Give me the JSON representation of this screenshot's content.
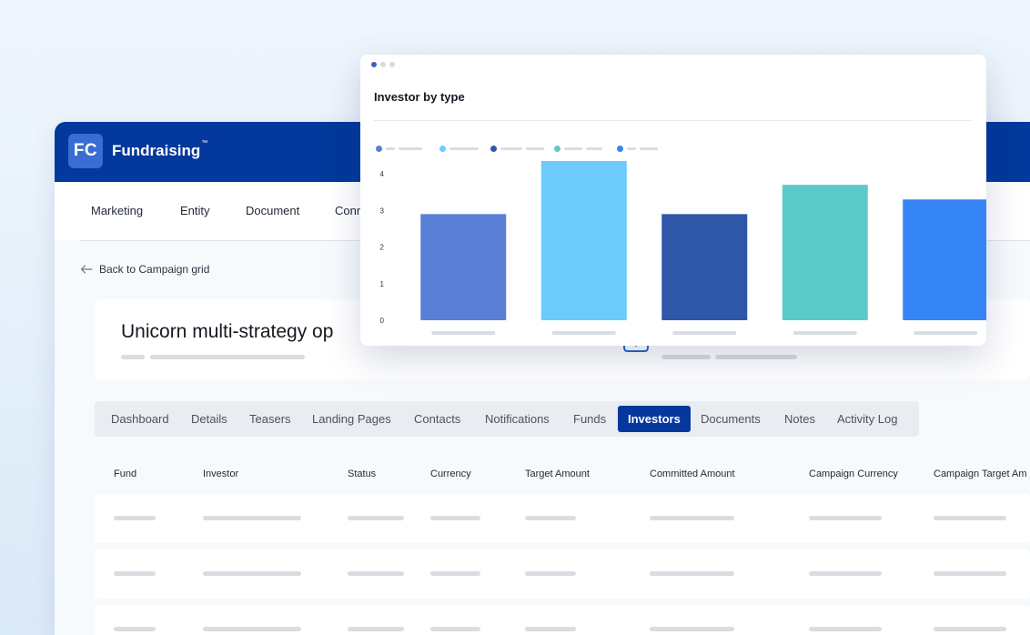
{
  "app": {
    "logo_text": "FC",
    "title": "Fundraising",
    "title_mark": "™"
  },
  "menu": {
    "items": [
      "Marketing",
      "Entity",
      "Document",
      "Conn"
    ]
  },
  "back_link": "Back to Campaign grid",
  "campaign": {
    "title": "Unicorn multi-strategy op"
  },
  "tabs": {
    "items": [
      "Dashboard",
      "Details",
      "Teasers",
      "Landing Pages",
      "Contacts",
      "Notifications",
      "Funds",
      "Investors",
      "Documents",
      "Notes",
      "Activity Log"
    ],
    "active": "Investors"
  },
  "table": {
    "columns": [
      "Fund",
      "Investor",
      "Status",
      "Currency",
      "Target Amount",
      "Committed Amount",
      "Campaign Currency",
      "Campaign Target Am"
    ]
  },
  "colors": {
    "brand": "#03389c",
    "active_tab": "#05389b"
  },
  "chart_data": {
    "type": "bar",
    "title": "Investor by type",
    "ylim": [
      0,
      4.4
    ],
    "yticks": [
      0,
      1,
      2,
      3,
      4
    ],
    "values": [
      2.9,
      4.35,
      2.9,
      3.7,
      3.3
    ],
    "colors": [
      "#5a80d6",
      "#6ccbfb",
      "#2f57a7",
      "#5ccac9",
      "#3585f7"
    ],
    "grid": false,
    "legend_placement": "top-left"
  }
}
